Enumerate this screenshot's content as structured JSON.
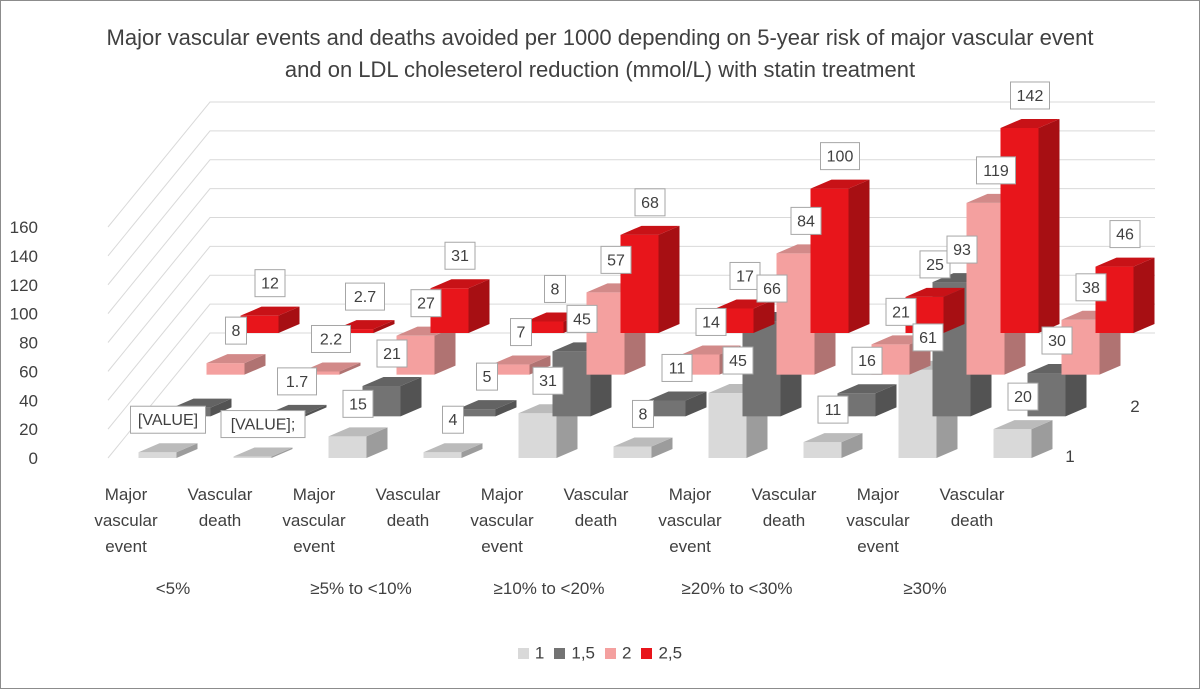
{
  "chart_data": {
    "type": "bar3d",
    "title": "Major vascular events and deaths avoided per 1000 depending on 5-year risk of major vascular event and on LDL choleseterol reduction (mmol/L) with statin treatment",
    "y_ticks": [
      "0",
      "20",
      "40",
      "60",
      "80",
      "100",
      "120",
      "140",
      "160"
    ],
    "ylim": [
      0,
      160
    ],
    "depth_labels": [
      "1",
      "2"
    ],
    "groups": [
      "<5%",
      "≥5% to <10%",
      "≥10% to <20%",
      "≥20% to <30%",
      "≥30%"
    ],
    "categories": [
      {
        "group": "<5%",
        "label": [
          "Major",
          "vascular",
          "event"
        ]
      },
      {
        "group": "<5%",
        "label": [
          "Vascular",
          "death"
        ]
      },
      {
        "group": "≥5% to <10%",
        "label": [
          "Major",
          "vascular",
          "event"
        ]
      },
      {
        "group": "≥5% to <10%",
        "label": [
          "Vascular",
          "death"
        ]
      },
      {
        "group": "≥10% to <20%",
        "label": [
          "Major",
          "vascular",
          "event"
        ]
      },
      {
        "group": "≥10% to <20%",
        "label": [
          "Vascular",
          "death"
        ]
      },
      {
        "group": "≥20% to <30%",
        "label": [
          "Major",
          "vascular",
          "event"
        ]
      },
      {
        "group": "≥20% to <30%",
        "label": [
          "Vascular",
          "death"
        ]
      },
      {
        "group": "≥30%",
        "label": [
          "Major",
          "vascular",
          "event"
        ]
      },
      {
        "group": "≥30%",
        "label": [
          "Vascular",
          "death"
        ]
      }
    ],
    "series": [
      {
        "name": "1",
        "color": "#d9d9d9",
        "values": [
          4,
          1,
          15,
          4,
          31,
          8,
          45,
          11,
          61,
          20
        ],
        "labels": [
          "[VALUE]",
          "[VALUE];",
          "15",
          "4",
          "31",
          "8",
          "45",
          "11",
          "61",
          "20"
        ]
      },
      {
        "name": "1,5",
        "color": "#737373",
        "values": [
          6,
          1.7,
          21,
          5,
          45,
          11,
          66,
          16,
          93,
          30
        ],
        "labels": [
          "",
          "1.7",
          "21",
          "5",
          "45",
          "11",
          "66",
          "16",
          "93",
          "30"
        ]
      },
      {
        "name": "2",
        "color": "#f4a09f",
        "values": [
          8,
          2.2,
          27,
          7,
          57,
          14,
          84,
          21,
          119,
          38
        ],
        "labels": [
          "8",
          "2.2",
          "27",
          "7",
          "57",
          "14",
          "84",
          "21",
          "119",
          "38"
        ]
      },
      {
        "name": "2,5",
        "color": "#e8151b",
        "values": [
          12,
          2.7,
          31,
          8,
          68,
          17,
          100,
          25,
          142,
          46
        ],
        "labels": [
          "12",
          "2.7",
          "31",
          "8",
          "68",
          "17",
          "100",
          "25",
          "142",
          "46"
        ]
      }
    ]
  }
}
